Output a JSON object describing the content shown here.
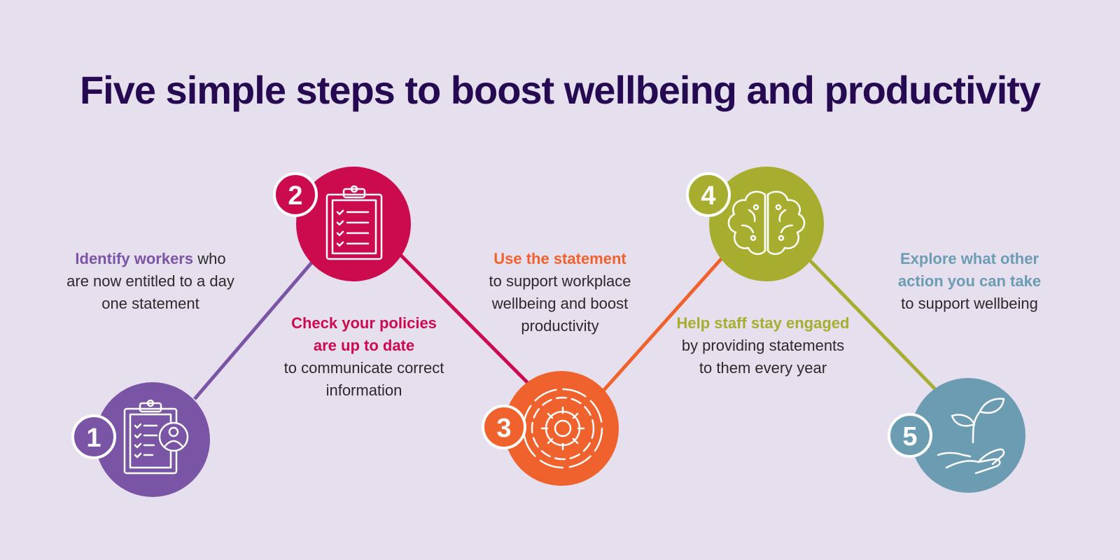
{
  "title": "Five simple steps to boost wellbeing and productivity",
  "steps": [
    {
      "number": "1",
      "icon": "clipboard-worker-icon",
      "color": "#7b55a5",
      "highlight": "Identify workers",
      "body": " who are now entitled to a day one statement"
    },
    {
      "number": "2",
      "icon": "checklist-clipboard-icon",
      "color": "#cc0a4e",
      "highlight": "Check your policies are up to date",
      "body": "to communicate correct information"
    },
    {
      "number": "3",
      "icon": "gear-icon",
      "color": "#f0622d",
      "highlight": "Use the statement",
      "body": "to support workplace wellbeing and boost productivity"
    },
    {
      "number": "4",
      "icon": "brain-icon",
      "color": "#a6ad2f",
      "highlight": "Help staff stay engaged",
      "body": " by providing statements to them every year"
    },
    {
      "number": "5",
      "icon": "plant-in-hand-icon",
      "color": "#6c9cb2",
      "highlight": "Explore what other action you can take",
      "body": "to support wellbeing"
    }
  ]
}
